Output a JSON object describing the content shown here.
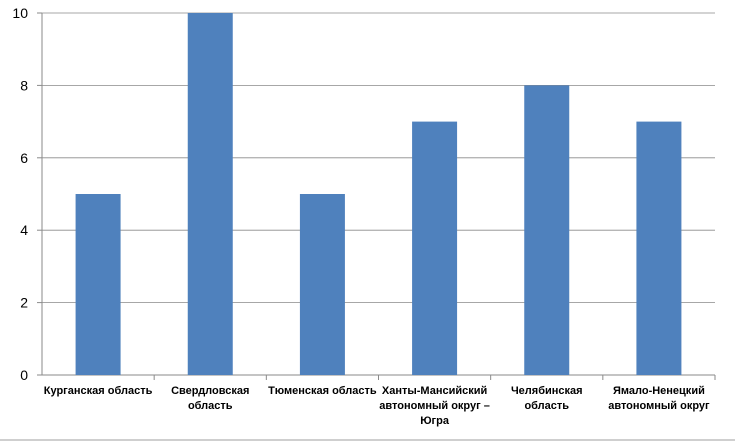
{
  "chart_data": {
    "type": "bar",
    "categories": [
      [
        "Курганская область"
      ],
      [
        "Свердловская",
        "область"
      ],
      [
        "Тюменская область"
      ],
      [
        "Ханты-Мансийский",
        "автономный округ –",
        "Югра"
      ],
      [
        "Челябинская",
        "область"
      ],
      [
        "Ямало-Ненецкий",
        "автономный округ"
      ]
    ],
    "values": [
      5,
      10,
      5,
      7,
      8,
      7
    ],
    "ylim": [
      0,
      10
    ],
    "yticks": [
      0,
      2,
      4,
      6,
      8,
      10
    ],
    "grid": true,
    "legend": "none",
    "colors": {
      "bar": "#4f81bd",
      "grid": "#8a8a8a"
    }
  }
}
